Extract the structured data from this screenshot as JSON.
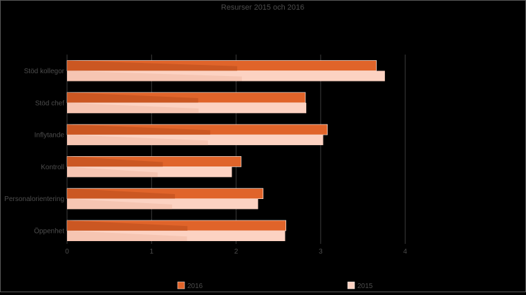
{
  "chart_data": {
    "type": "bar",
    "orientation": "horizontal",
    "title": "Resurser 2015 och 2016",
    "categories": [
      "Stöd kollegor",
      "Stöd chef",
      "Inflytande",
      "Kontroll",
      "Personalorientering",
      "Öppenhet"
    ],
    "series": [
      {
        "name": "2016",
        "values": [
          3.66,
          2.82,
          3.08,
          2.06,
          2.32,
          2.59
        ]
      },
      {
        "name": "2015",
        "values": [
          3.76,
          2.83,
          3.03,
          1.95,
          2.26,
          2.58
        ]
      }
    ],
    "xlim": [
      0,
      4
    ],
    "xticks": [
      "0",
      "1",
      "2",
      "3",
      "4"
    ],
    "grid": true,
    "legend_position": "bottom",
    "colors": {
      "2016": "#e0642a",
      "2015": "#fcd2c2",
      "2016_shade": "#b94d1c",
      "2015_shade": "#f0b9a5",
      "grid": "#3c3c3c",
      "text": "#4d4d4d"
    }
  }
}
